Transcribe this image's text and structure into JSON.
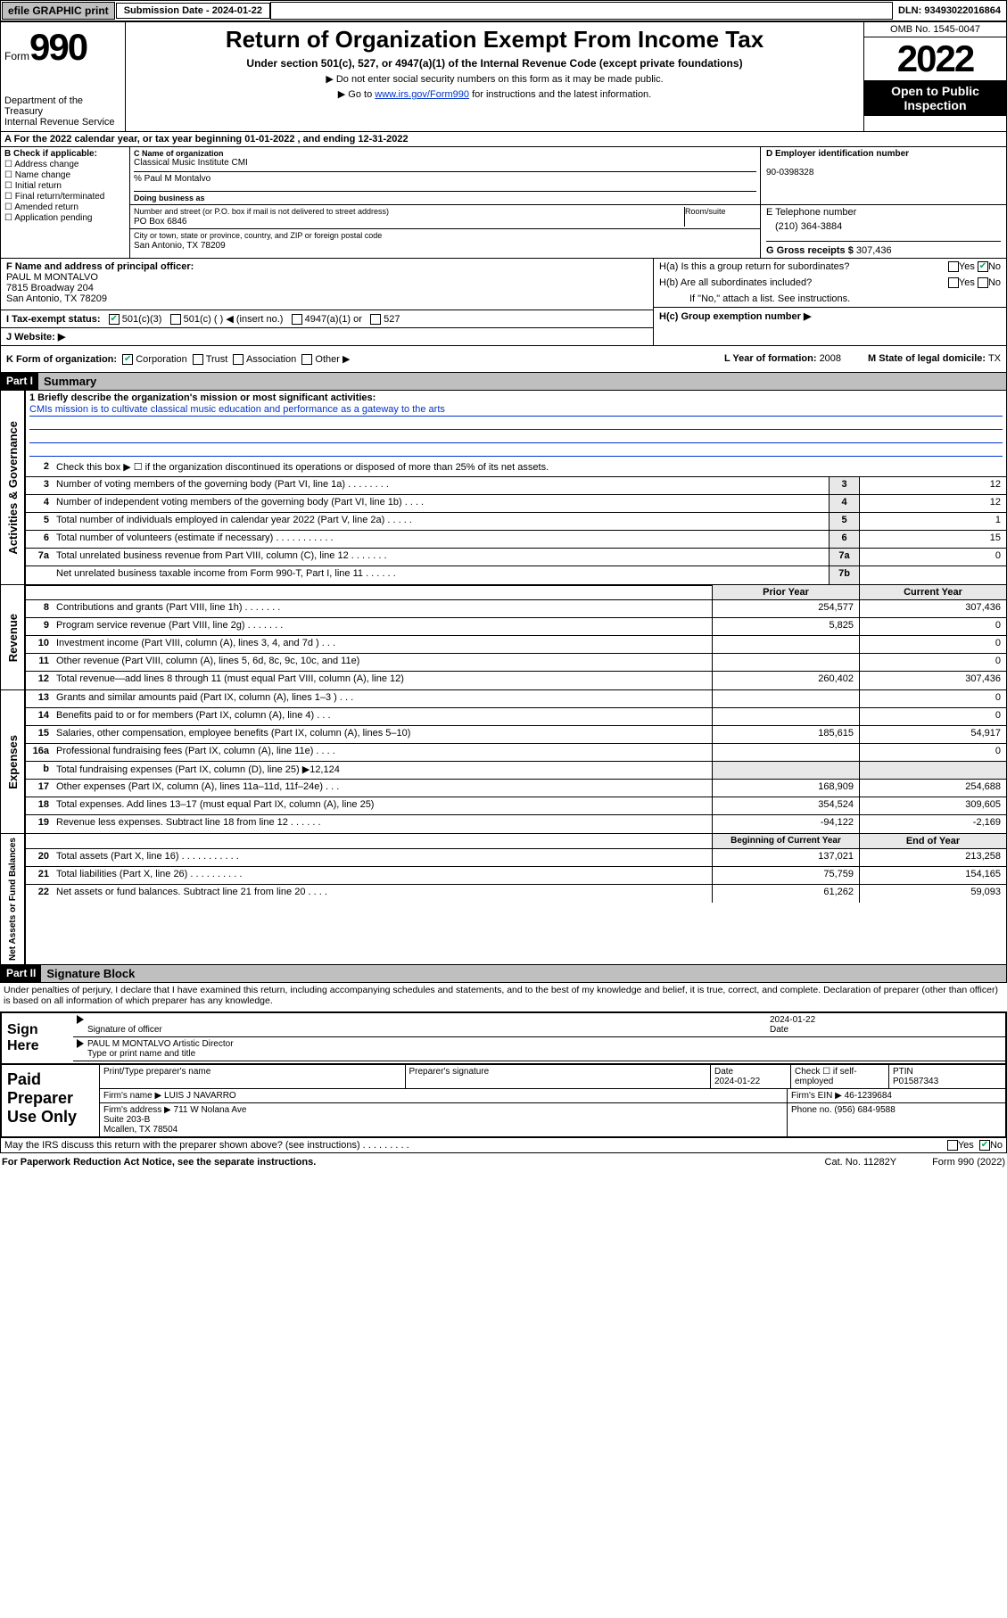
{
  "topbar": {
    "efile": "efile GRAPHIC print",
    "sub_label": "Submission Date - 2024-01-22",
    "dln": "DLN: 93493022016864"
  },
  "header": {
    "form_word": "Form",
    "form_num": "990",
    "dept": "Department of the Treasury\nInternal Revenue Service",
    "title": "Return of Organization Exempt From Income Tax",
    "subtitle": "Under section 501(c), 527, or 4947(a)(1) of the Internal Revenue Code (except private foundations)",
    "note1": "▶ Do not enter social security numbers on this form as it may be made public.",
    "note2_pre": "▶ Go to ",
    "note2_link": "www.irs.gov/Form990",
    "note2_post": " for instructions and the latest information.",
    "omb": "OMB No. 1545-0047",
    "year": "2022",
    "open": "Open to Public Inspection"
  },
  "rowA": "A For the 2022 calendar year, or tax year beginning 01-01-2022   , and ending 12-31-2022",
  "B": {
    "hdr": "B Check if applicable:",
    "items": [
      "☐ Address change",
      "☐ Name change",
      "☐ Initial return",
      "☐ Final return/terminated",
      "☐ Amended return",
      "☐ Application pending"
    ]
  },
  "C": {
    "name_lbl": "C Name of organization",
    "name": "Classical Music Institute CMI",
    "care_lbl": "% Paul M Montalvo",
    "dba_lbl": "Doing business as",
    "street_lbl": "Number and street (or P.O. box if mail is not delivered to street address)",
    "suite_lbl": "Room/suite",
    "street": "PO Box 6846",
    "city_lbl": "City or town, state or province, country, and ZIP or foreign postal code",
    "city": "San Antonio, TX  78209"
  },
  "D": {
    "lbl": "D Employer identification number",
    "val": "90-0398328"
  },
  "E": {
    "lbl": "E Telephone number",
    "val": "(210) 364-3884"
  },
  "G": {
    "lbl": "G Gross receipts $",
    "val": "307,436"
  },
  "F": {
    "lbl": "F  Name and address of principal officer:",
    "name": "PAUL M MONTALVO",
    "addr1": "7815 Broadway 204",
    "addr2": "San Antonio, TX  78209"
  },
  "H": {
    "a": "H(a)  Is this a group return for subordinates?",
    "a_yes": "Yes",
    "a_no": "No",
    "b": "H(b)  Are all subordinates included?",
    "b_yes": "Yes",
    "b_no": "No",
    "b_note": "If \"No,\" attach a list. See instructions.",
    "c": "H(c)  Group exemption number ▶"
  },
  "I": {
    "lbl": "I    Tax-exempt status:",
    "opts": [
      "501(c)(3)",
      "501(c) (  ) ◀ (insert no.)",
      "4947(a)(1) or",
      "527"
    ]
  },
  "J": {
    "lbl": "J    Website: ▶"
  },
  "K": {
    "lbl": "K Form of organization:",
    "opts": [
      "Corporation",
      "Trust",
      "Association",
      "Other ▶"
    ]
  },
  "L": {
    "lbl": "L Year of formation:",
    "val": "2008"
  },
  "M": {
    "lbl": "M State of legal domicile:",
    "val": "TX"
  },
  "partI": {
    "hdr": "Part I",
    "title": "Summary"
  },
  "mission": {
    "lbl": "1   Briefly describe the organization's mission or most significant activities:",
    "text": "CMIs mission is to cultivate classical music education and performance as a gateway to the arts"
  },
  "gov": {
    "side": "Activities & Governance",
    "line2": "Check this box ▶ ☐  if the organization discontinued its operations or disposed of more than 25% of its net assets.",
    "lines": [
      {
        "n": "3",
        "t": "Number of voting members of the governing body (Part VI, line 1a)  .    .    .    .    .    .    .    .",
        "b": "3",
        "v": "12"
      },
      {
        "n": "4",
        "t": "Number of independent voting members of the governing body (Part VI, line 1b)   .    .    .    .",
        "b": "4",
        "v": "12"
      },
      {
        "n": "5",
        "t": "Total number of individuals employed in calendar year 2022 (Part V, line 2a)    .    .    .    .    .",
        "b": "5",
        "v": "1"
      },
      {
        "n": "6",
        "t": "Total number of volunteers (estimate if necessary)   .    .    .    .    .    .    .    .    .    .    .",
        "b": "6",
        "v": "15"
      },
      {
        "n": "7a",
        "t": "Total unrelated business revenue from Part VIII, column (C), line 12   .    .    .    .    .    .    .",
        "b": "7a",
        "v": "0"
      },
      {
        "n": "",
        "t": "Net unrelated business taxable income from Form 990-T, Part I, line 11   .    .    .    .    .    .",
        "b": "7b",
        "v": ""
      }
    ]
  },
  "rev": {
    "side": "Revenue",
    "hdr_prior": "Prior Year",
    "hdr_curr": "Current Year",
    "lines": [
      {
        "n": "8",
        "t": "Contributions and grants (Part VIII, line 1h)   .    .    .    .    .    .    .",
        "p": "254,577",
        "c": "307,436"
      },
      {
        "n": "9",
        "t": "Program service revenue (Part VIII, line 2g)    .    .    .    .    .    .    .",
        "p": "5,825",
        "c": "0"
      },
      {
        "n": "10",
        "t": "Investment income (Part VIII, column (A), lines 3, 4, and 7d )   .    .    .",
        "p": "",
        "c": "0"
      },
      {
        "n": "11",
        "t": "Other revenue (Part VIII, column (A), lines 5, 6d, 8c, 9c, 10c, and 11e)",
        "p": "",
        "c": "0"
      },
      {
        "n": "12",
        "t": "Total revenue—add lines 8 through 11 (must equal Part VIII, column (A), line 12)",
        "p": "260,402",
        "c": "307,436"
      }
    ]
  },
  "exp": {
    "side": "Expenses",
    "lines": [
      {
        "n": "13",
        "t": "Grants and similar amounts paid (Part IX, column (A), lines 1–3 )   .    .    .",
        "p": "",
        "c": "0"
      },
      {
        "n": "14",
        "t": "Benefits paid to or for members (Part IX, column (A), line 4)   .    .    .",
        "p": "",
        "c": "0"
      },
      {
        "n": "15",
        "t": "Salaries, other compensation, employee benefits (Part IX, column (A), lines 5–10)",
        "p": "185,615",
        "c": "54,917"
      },
      {
        "n": "16a",
        "t": "Professional fundraising fees (Part IX, column (A), line 11e)   .    .    .    .",
        "p": "",
        "c": "0"
      },
      {
        "n": "b",
        "t": "Total fundraising expenses (Part IX, column (D), line 25) ▶12,124",
        "p": "—",
        "c": "—"
      },
      {
        "n": "17",
        "t": "Other expenses (Part IX, column (A), lines 11a–11d, 11f–24e)   .    .    .",
        "p": "168,909",
        "c": "254,688"
      },
      {
        "n": "18",
        "t": "Total expenses. Add lines 13–17 (must equal Part IX, column (A), line 25)",
        "p": "354,524",
        "c": "309,605"
      },
      {
        "n": "19",
        "t": "Revenue less expenses. Subtract line 18 from line 12   .    .    .    .    .    .",
        "p": "-94,122",
        "c": "-2,169"
      }
    ]
  },
  "net": {
    "side": "Net Assets or Fund Balances",
    "hdr_beg": "Beginning of Current Year",
    "hdr_end": "End of Year",
    "lines": [
      {
        "n": "20",
        "t": "Total assets (Part X, line 16)   .    .    .    .    .    .    .    .    .    .    .",
        "p": "137,021",
        "c": "213,258"
      },
      {
        "n": "21",
        "t": "Total liabilities (Part X, line 26)    .    .    .    .    .    .    .    .    .    .",
        "p": "75,759",
        "c": "154,165"
      },
      {
        "n": "22",
        "t": "Net assets or fund balances. Subtract line 21 from line 20   .    .    .    .",
        "p": "61,262",
        "c": "59,093"
      }
    ]
  },
  "partII": {
    "hdr": "Part II",
    "title": "Signature Block"
  },
  "declare": "Under penalties of perjury, I declare that I have examined this return, including accompanying schedules and statements, and to the best of my knowledge and belief, it is true, correct, and complete. Declaration of preparer (other than officer) is based on all information of which preparer has any knowledge.",
  "sign": {
    "label": "Sign Here",
    "sig_of_officer": "Signature of officer",
    "date_lbl": "Date",
    "date": "2024-01-22",
    "name": "PAUL M MONTALVO  Artistic Director",
    "name_lbl": "Type or print name and title"
  },
  "paid": {
    "label": "Paid Preparer Use Only",
    "h1": "Print/Type preparer's name",
    "h2": "Preparer's signature",
    "h3": "Date",
    "h4": "Check ☐ if self-employed",
    "h5": "PTIN",
    "date": "2024-01-22",
    "ptin": "P01587343",
    "firm_lbl": "Firm's name   ▶",
    "firm": "LUIS J NAVARRO",
    "ein_lbl": "Firm's EIN ▶",
    "ein": "46-1239684",
    "addr_lbl": "Firm's address ▶",
    "addr": "711 W Nolana Ave\nSuite 203-B\nMcallen, TX  78504",
    "phone_lbl": "Phone no.",
    "phone": "(956) 684-9588"
  },
  "discuss": {
    "q": "May the IRS discuss this return with the preparer shown above? (see instructions)   .    .    .    .    .    .    .    .    .",
    "yes": "Yes",
    "no": "No"
  },
  "footer": {
    "l": "For Paperwork Reduction Act Notice, see the separate instructions.",
    "m": "Cat. No. 11282Y",
    "r": "Form 990 (2022)"
  }
}
